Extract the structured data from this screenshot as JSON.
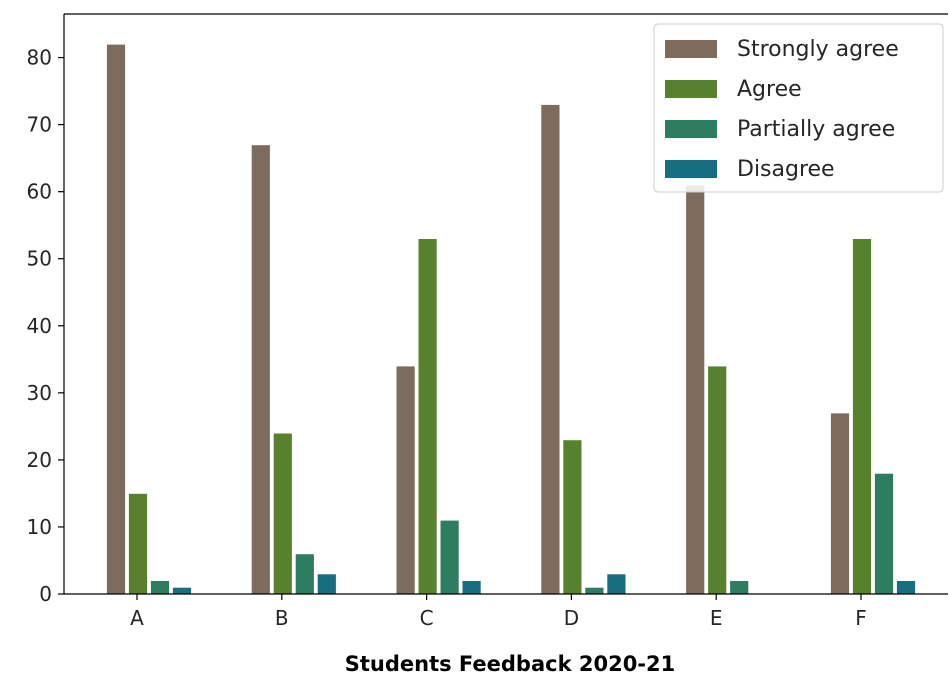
{
  "chart_data": {
    "type": "bar",
    "title": "",
    "xlabel": "Students Feedback 2020-21",
    "ylabel": "",
    "categories": [
      "A",
      "B",
      "C",
      "D",
      "E",
      "F"
    ],
    "series": [
      {
        "name": "Strongly agree",
        "color": "#7d6b5d",
        "values": [
          82,
          67,
          34,
          73,
          61,
          27
        ]
      },
      {
        "name": "Agree",
        "color": "#58812e",
        "values": [
          15,
          24,
          53,
          23,
          34,
          53
        ]
      },
      {
        "name": "Partially agree",
        "color": "#2e7d60",
        "values": [
          2,
          6,
          11,
          1,
          2,
          18
        ]
      },
      {
        "name": "Disagree",
        "color": "#176e80",
        "values": [
          1,
          3,
          2,
          3,
          0,
          2
        ]
      }
    ],
    "ylim": [
      0,
      86.5
    ],
    "yticks": [
      0,
      10,
      20,
      30,
      40,
      50,
      60,
      70,
      80
    ],
    "grid": false,
    "legend_position": "top-right"
  }
}
